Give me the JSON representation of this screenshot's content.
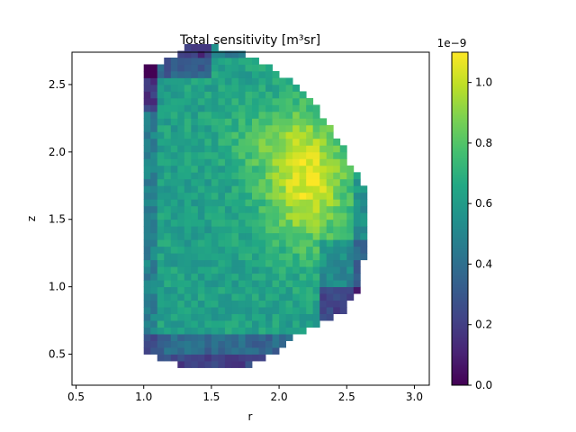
{
  "chart_data": {
    "type": "heatmap",
    "title": "Total sensitivity [m³sr]",
    "xlabel": "r",
    "ylabel": "z",
    "xlim": [
      0.47,
      3.11
    ],
    "ylim": [
      0.27,
      2.74
    ],
    "x_ticks": [
      0.5,
      1.0,
      1.5,
      2.0,
      2.5,
      3.0
    ],
    "x_tick_labels": [
      "0.5",
      "1.0",
      "1.5",
      "2.0",
      "2.5",
      "3.0"
    ],
    "y_ticks": [
      0.5,
      1.0,
      1.5,
      2.0,
      2.5
    ],
    "y_tick_labels": [
      "0.5",
      "1.0",
      "1.5",
      "2.0",
      "2.5"
    ],
    "grid": false,
    "colormap": "viridis",
    "cell_size": 0.05,
    "colorbar": {
      "min": 0.0,
      "max": 1.1,
      "exponent_label": "1e−9",
      "ticks": [
        0.0,
        0.2,
        0.4,
        0.6,
        0.8,
        1.0
      ],
      "tick_labels": [
        "0.0",
        "0.2",
        "0.4",
        "0.6",
        "0.8",
        "1.0"
      ]
    },
    "region": {
      "row_z_bottom": 0.4,
      "row_width": 0.05,
      "rows": [
        [
          1.25,
          1.8
        ],
        [
          1.1,
          1.9
        ],
        [
          1.0,
          2.0
        ],
        [
          1.0,
          2.05
        ],
        [
          1.0,
          2.1
        ],
        [
          1.0,
          2.2
        ],
        [
          1.0,
          2.3
        ],
        [
          1.0,
          2.4
        ],
        [
          1.0,
          2.5
        ],
        [
          1.0,
          2.5
        ],
        [
          1.0,
          2.55
        ],
        [
          1.0,
          2.6
        ],
        [
          1.0,
          2.6
        ],
        [
          1.0,
          2.6
        ],
        [
          1.0,
          2.6
        ],
        [
          1.0,
          2.6
        ],
        [
          1.0,
          2.65
        ],
        [
          1.0,
          2.65
        ],
        [
          1.0,
          2.65
        ],
        [
          1.0,
          2.65
        ],
        [
          1.0,
          2.65
        ],
        [
          1.0,
          2.65
        ],
        [
          1.0,
          2.65
        ],
        [
          1.0,
          2.65
        ],
        [
          1.0,
          2.65
        ],
        [
          1.0,
          2.65
        ],
        [
          1.0,
          2.65
        ],
        [
          1.0,
          2.6
        ],
        [
          1.0,
          2.6
        ],
        [
          1.0,
          2.55
        ],
        [
          1.0,
          2.5
        ],
        [
          1.0,
          2.5
        ],
        [
          1.0,
          2.5
        ],
        [
          1.0,
          2.45
        ],
        [
          1.0,
          2.4
        ],
        [
          1.0,
          2.4
        ],
        [
          1.0,
          2.35
        ],
        [
          1.0,
          2.3
        ],
        [
          1.0,
          2.3
        ],
        [
          1.0,
          2.25
        ],
        [
          1.0,
          2.2
        ],
        [
          1.0,
          2.15
        ],
        [
          1.0,
          2.1
        ],
        [
          1.0,
          2.0
        ],
        [
          1.0,
          1.95
        ],
        [
          1.15,
          1.85
        ],
        [
          1.25,
          1.75
        ],
        [
          1.3,
          1.55
        ]
      ]
    },
    "data_summary": {
      "peak_value": 1.07,
      "peak_r": 2.2,
      "peak_z": 1.8,
      "low_regions": [
        "outer edge near z≈2.5",
        "bottom near z≈0.5",
        "lower-right corner near r≈2.4, z≈0.9"
      ]
    }
  }
}
